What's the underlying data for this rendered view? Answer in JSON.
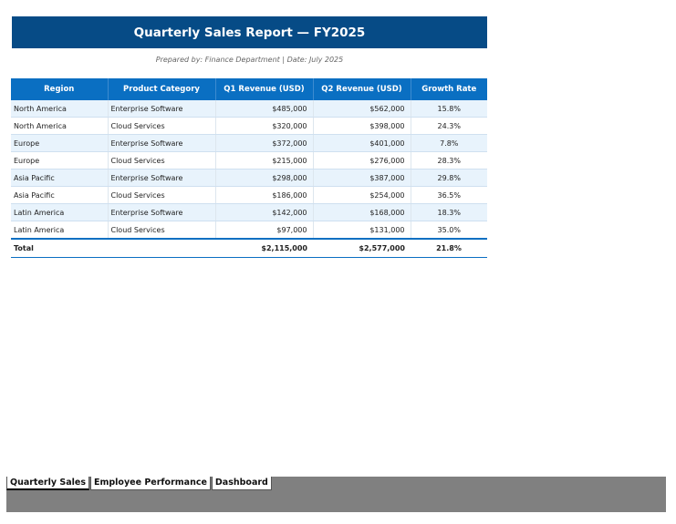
{
  "report": {
    "title": "Quarterly Sales Report — FY2025",
    "subtitle": "Prepared by: Finance Department  |  Date: July 2025",
    "columns": [
      "Region",
      "Product Category",
      "Q1 Revenue (USD)",
      "Q2 Revenue (USD)",
      "Growth Rate"
    ],
    "rows": [
      {
        "region": "North America",
        "category": "Enterprise Software",
        "q1": "$485,000",
        "q2": "$562,000",
        "growth": "15.8%"
      },
      {
        "region": "North America",
        "category": "Cloud Services",
        "q1": "$320,000",
        "q2": "$398,000",
        "growth": "24.3%"
      },
      {
        "region": "Europe",
        "category": "Enterprise Software",
        "q1": "$372,000",
        "q2": "$401,000",
        "growth": "7.8%"
      },
      {
        "region": "Europe",
        "category": "Cloud Services",
        "q1": "$215,000",
        "q2": "$276,000",
        "growth": "28.3%"
      },
      {
        "region": "Asia Pacific",
        "category": "Enterprise Software",
        "q1": "$298,000",
        "q2": "$387,000",
        "growth": "29.8%"
      },
      {
        "region": "Asia Pacific",
        "category": "Cloud Services",
        "q1": "$186,000",
        "q2": "$254,000",
        "growth": "36.5%"
      },
      {
        "region": "Latin America",
        "category": "Enterprise Software",
        "q1": "$142,000",
        "q2": "$168,000",
        "growth": "18.3%"
      },
      {
        "region": "Latin America",
        "category": "Cloud Services",
        "q1": "$97,000",
        "q2": "$131,000",
        "growth": "35.0%"
      }
    ],
    "total": {
      "label": "Total",
      "q1": "$2,115,000",
      "q2": "$2,577,000",
      "growth": "21.8%"
    }
  },
  "sheet_tabs": [
    "Quarterly Sales",
    "Employee Performance",
    "Dashboard"
  ],
  "active_tab": "Quarterly Sales",
  "colors": {
    "title_bar": "#064b86",
    "header_row": "#0a6fc2",
    "alt_row": "#e8f3fc",
    "tab_area": "#808080"
  }
}
